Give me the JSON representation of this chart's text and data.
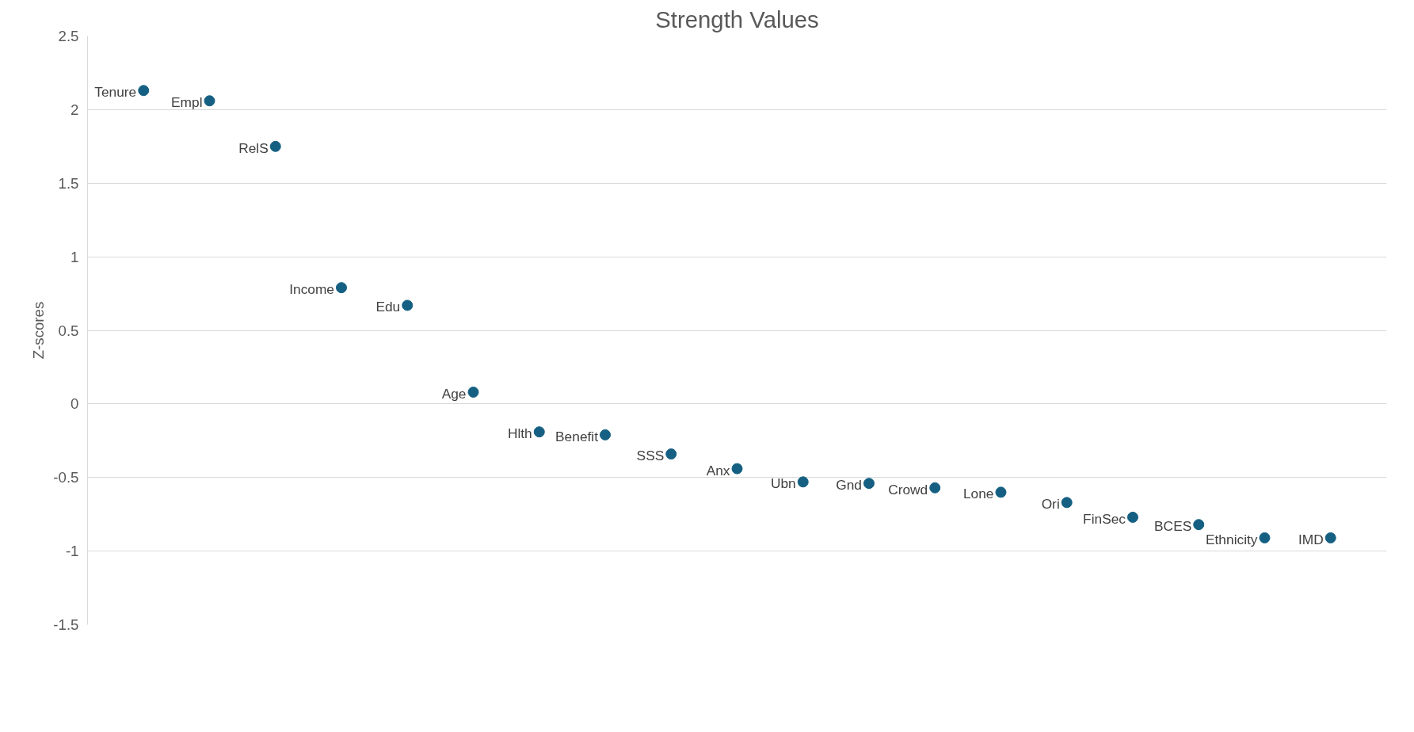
{
  "chart_data": {
    "type": "scatter",
    "title": "Strength Values",
    "ylabel": "Z-scores",
    "categories": [
      null,
      null,
      null,
      null,
      null,
      null,
      null,
      null,
      null,
      null,
      null,
      null,
      null,
      null,
      null,
      null,
      null,
      null,
      null
    ],
    "series": [
      {
        "color": "#156082",
        "values": [
          2.13,
          2.06,
          1.75,
          0.79,
          0.67,
          0.08,
          -0.19,
          -0.21,
          -0.34,
          -0.44,
          -0.53,
          -0.54,
          -0.57,
          -0.6,
          -0.67,
          -0.77,
          -0.82,
          -0.91,
          -0.91
        ]
      }
    ],
    "annotations": [
      "Tenure",
      "Empl",
      "RelS",
      "Income",
      "Edu",
      "Age",
      "Hlth",
      "Benefit",
      "SSS",
      "Anx",
      "Ubn",
      "Gnd",
      "Crowd",
      "Lone",
      "Ori",
      "FinSec",
      "BCES",
      "Ethnicity",
      "IMD"
    ],
    "ylim": [
      -1.5,
      2.5
    ],
    "yticks": [
      2.5,
      2,
      1.5,
      1,
      0.5,
      0,
      -0.5,
      -1,
      -1.5
    ],
    "grid": "y",
    "marker": "circle",
    "tick_labels": "y"
  }
}
